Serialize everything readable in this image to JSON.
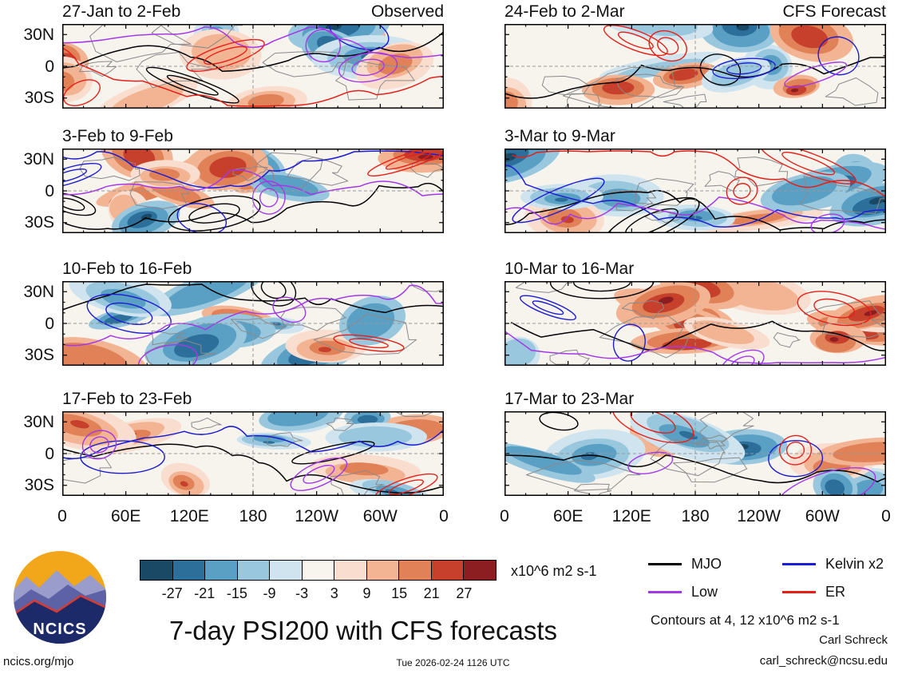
{
  "chart_data": {
    "type": "heatmap",
    "title": "7-day PSI200 with CFS forecasts",
    "columns": [
      {
        "header": "Observed",
        "panels": [
          "27-Jan to 2-Feb",
          "3-Feb to 9-Feb",
          "10-Feb to 16-Feb",
          "17-Feb to 23-Feb"
        ]
      },
      {
        "header": "CFS Forecast",
        "panels": [
          "24-Feb to 2-Mar",
          "3-Mar to 9-Mar",
          "10-Mar to 16-Mar",
          "17-Mar to 23-Mar"
        ]
      }
    ],
    "y_ticks": [
      "30N",
      "0",
      "30S"
    ],
    "x_ticks": [
      "0",
      "60E",
      "120E",
      "180",
      "120W",
      "60W",
      "0"
    ],
    "colorbar": {
      "boundaries": [
        -27,
        -21,
        -15,
        -9,
        -3,
        3,
        9,
        15,
        21,
        27
      ],
      "colors": [
        "#1a4965",
        "#2d6f9b",
        "#5a9fc4",
        "#98c7de",
        "#cfe4ef",
        "#f8f4ee",
        "#f9ded0",
        "#f2b493",
        "#e08158",
        "#c6402c",
        "#8c1d20"
      ],
      "units": "x10^6 m2 s-1"
    },
    "legend": [
      {
        "label": "MJO",
        "color": "#000000"
      },
      {
        "label": "Kelvin x2",
        "color": "#1c1cd2"
      },
      {
        "label": "Low",
        "color": "#a438e8"
      },
      {
        "label": "ER",
        "color": "#e62019"
      }
    ],
    "contour_note": "Contours at 4, 12 x10^6 m2 s-1"
  },
  "footer": {
    "site": "ncics.org/mjo",
    "timestamp": "Tue 2026-02-24 1126 UTC",
    "credit_name": "Carl Schreck",
    "credit_email": "carl_schreck@ncsu.edu"
  },
  "logo": {
    "text": "NCICS"
  }
}
